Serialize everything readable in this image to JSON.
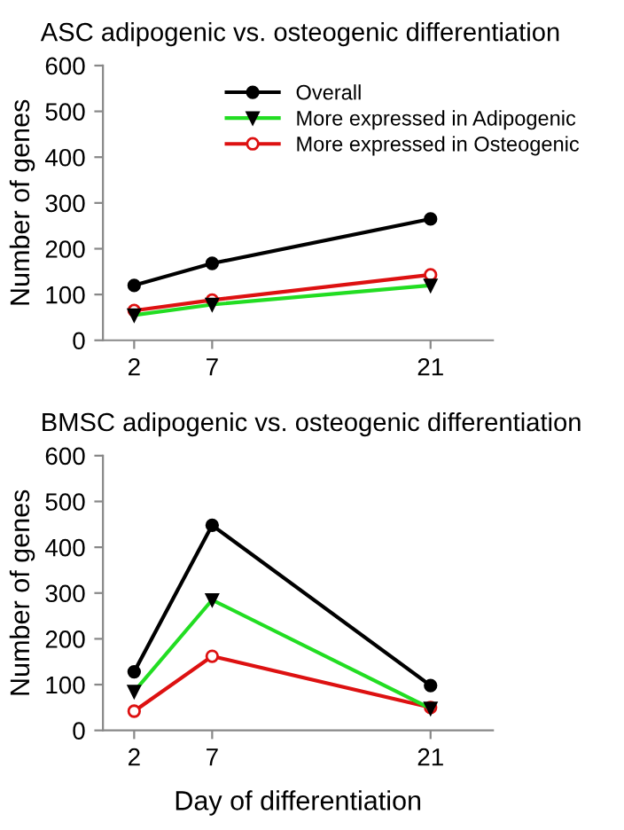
{
  "chart_data": [
    {
      "type": "line",
      "title": "ASC adipogenic vs. osteogenic differentiation",
      "ylabel": "Number of genes",
      "x": [
        2,
        7,
        21
      ],
      "xlim": [
        0,
        25
      ],
      "xticks": [
        2,
        7,
        21
      ],
      "ylim": [
        0,
        600
      ],
      "yticks": [
        0,
        100,
        200,
        300,
        400,
        500,
        600
      ],
      "grid": false,
      "legend": "top right",
      "series": [
        {
          "name": "Overall",
          "color": "#000000",
          "marker": "circle",
          "values": [
            120,
            168,
            265
          ]
        },
        {
          "name": "More expressed in Adipogenic",
          "color": "#22dd22",
          "marker": "triangle",
          "values": [
            55,
            78,
            120
          ]
        },
        {
          "name": "More expressed in Osteogenic",
          "color": "#dd1111",
          "marker": "circle",
          "values": [
            65,
            88,
            143
          ]
        }
      ]
    },
    {
      "type": "line",
      "title": "BMSC adipogenic vs. osteogenic differentiation",
      "ylabel": "Number of genes",
      "xlabel": "Day of differentiation",
      "x": [
        2,
        7,
        21
      ],
      "xlim": [
        0,
        25
      ],
      "xticks": [
        2,
        7,
        21
      ],
      "ylim": [
        0,
        600
      ],
      "yticks": [
        0,
        100,
        200,
        300,
        400,
        500,
        600
      ],
      "grid": false,
      "series": [
        {
          "color": "#000000",
          "marker": "circle",
          "values": [
            128,
            448,
            98
          ]
        },
        {
          "color": "#22dd22",
          "marker": "triangle",
          "values": [
            85,
            285,
            48
          ]
        },
        {
          "color": "#dd1111",
          "marker": "circle",
          "values": [
            42,
            162,
            50
          ]
        }
      ]
    }
  ]
}
